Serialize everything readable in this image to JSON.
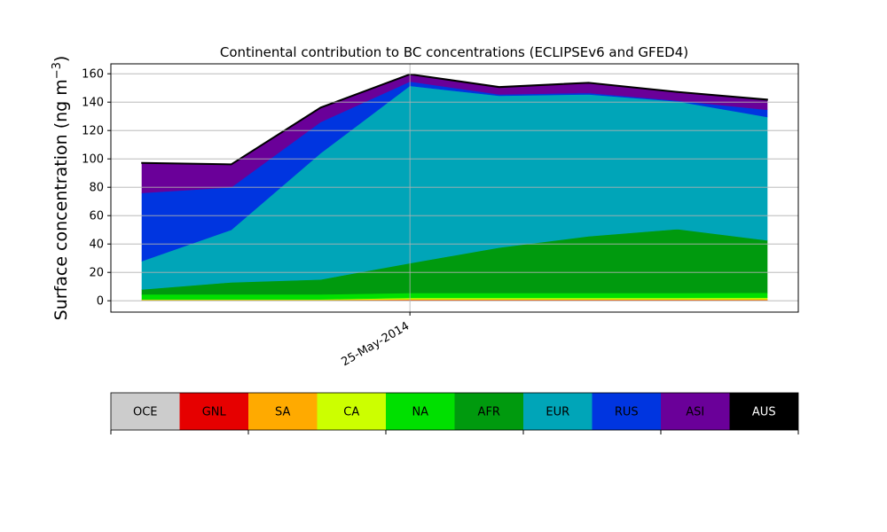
{
  "chart_data": {
    "type": "area",
    "title": "Continental contribution to BC concentrations (ECLIPSEv6 and GFED4)",
    "ylabel": "Surface concentration (ng m",
    "ylabel_sup": "−3",
    "ylabel_close": ")",
    "xlabel": "",
    "ylim": [
      -8,
      167
    ],
    "yticks": [
      0,
      20,
      40,
      60,
      80,
      100,
      120,
      140,
      160
    ],
    "x": [
      0,
      1,
      2,
      3,
      4,
      5,
      6,
      7
    ],
    "xtick_positions": [
      3
    ],
    "xtick_labels": [
      "25-May-2014"
    ],
    "grid": true,
    "stacked": true,
    "series": [
      {
        "name": "OCE",
        "color": "#cccccc",
        "values": [
          0.3,
          0.3,
          0.3,
          0.3,
          0.3,
          0.3,
          0.3,
          0.3
        ]
      },
      {
        "name": "GNL",
        "color": "#e60000",
        "values": [
          0.2,
          0.2,
          0.2,
          0.4,
          0.4,
          0.4,
          0.4,
          0.3
        ]
      },
      {
        "name": "SA",
        "color": "#ffaa00",
        "values": [
          0.1,
          0.1,
          0.1,
          0.3,
          0.3,
          0.3,
          0.3,
          0.5
        ]
      },
      {
        "name": "CA",
        "color": "#ccff00",
        "values": [
          0.4,
          0.4,
          0.4,
          1.0,
          1.0,
          1.0,
          1.0,
          1.0
        ]
      },
      {
        "name": "NA",
        "color": "#00e000",
        "values": [
          3.5,
          3.5,
          3.5,
          3.5,
          3.5,
          3.5,
          3.5,
          3.5
        ]
      },
      {
        "name": "AFR",
        "color": "#009a0e",
        "values": [
          3.5,
          8.5,
          10.5,
          21,
          32,
          40,
          45,
          37
        ]
      },
      {
        "name": "EUR",
        "color": "#00a5b8",
        "values": [
          20,
          37,
          89,
          125,
          107,
          100,
          90,
          87
        ]
      },
      {
        "name": "RUS",
        "color": "#0035e0",
        "values": [
          48,
          30,
          22,
          3,
          1,
          1,
          0.5,
          5
        ]
      },
      {
        "name": "ASI",
        "color": "#6a0099",
        "values": [
          21,
          16,
          10,
          5,
          5,
          7,
          6,
          7
        ]
      },
      {
        "name": "AUS",
        "color": "#000000",
        "values": [
          0.3,
          0.3,
          0.3,
          0.3,
          0.3,
          0.3,
          0.3,
          0.3
        ]
      }
    ]
  }
}
